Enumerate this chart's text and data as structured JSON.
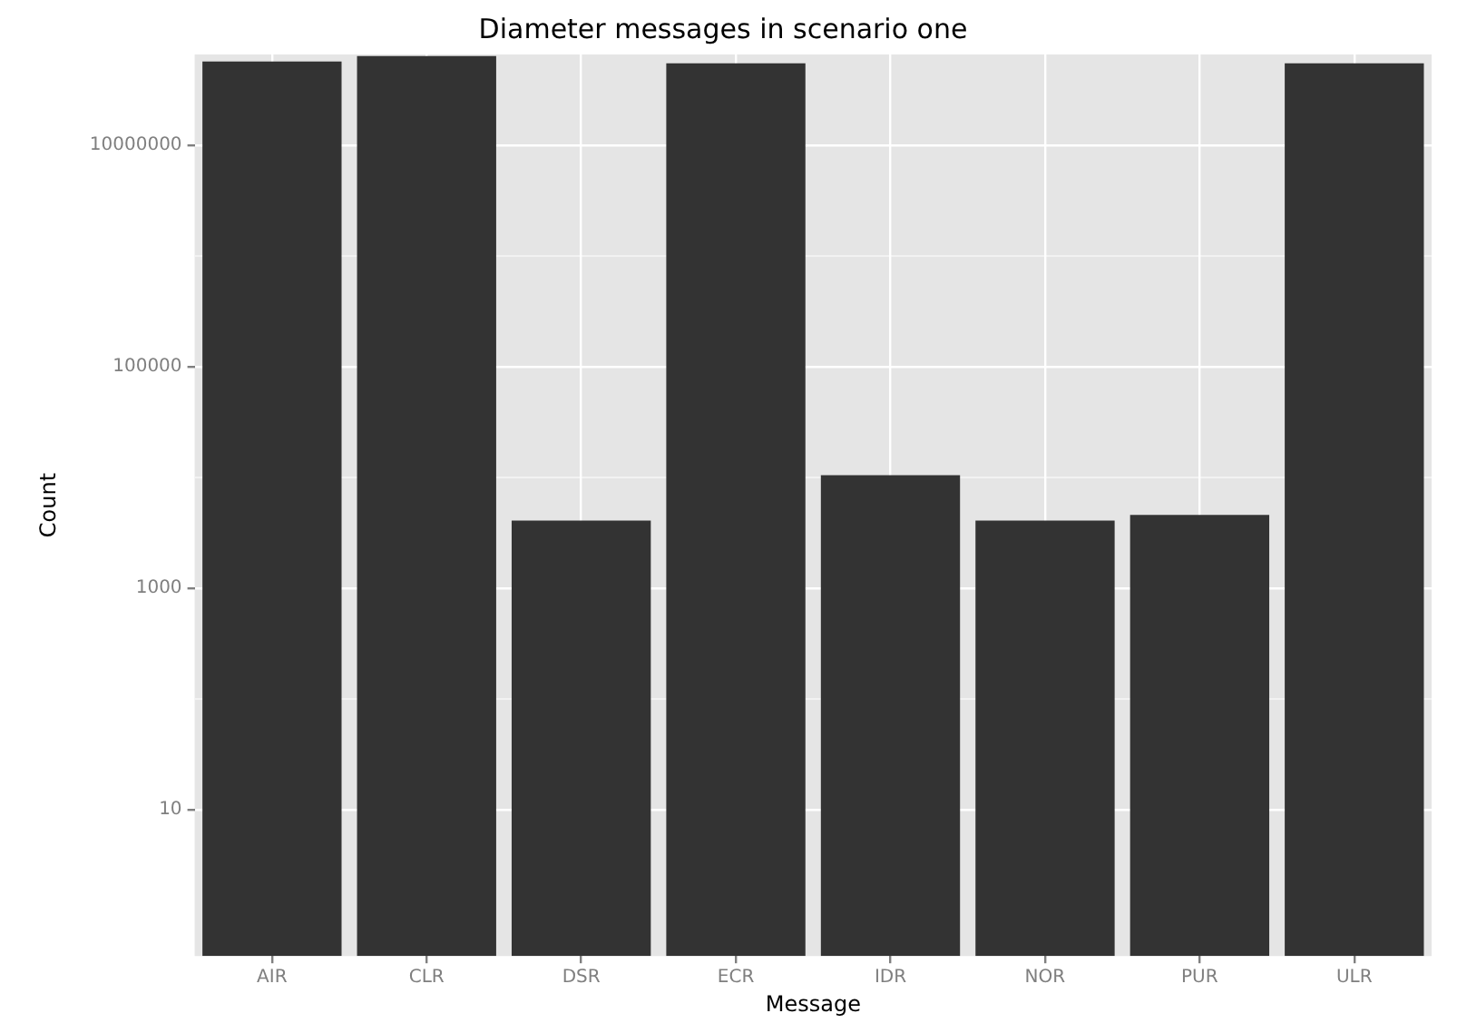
{
  "chart_data": {
    "type": "bar",
    "title": "Diameter messages in scenario one",
    "xlabel": "Message",
    "ylabel": "Count",
    "categories": [
      "AIR",
      "CLR",
      "DSR",
      "ECR",
      "IDR",
      "NOR",
      "PUR",
      "ULR"
    ],
    "values": [
      57000000,
      64000000,
      4100,
      55000000,
      10500,
      4100,
      4600,
      55000000
    ],
    "color": "#333333",
    "log": "y",
    "ylim": [
      0.48,
      66000000
    ],
    "yticks": [
      10,
      {
        "value": 100,
        "label": null
      },
      1000,
      {
        "value": 10000,
        "label": null
      },
      100000,
      {
        "value": 1000000,
        "label": null
      },
      10000000
    ],
    "grid": true
  }
}
